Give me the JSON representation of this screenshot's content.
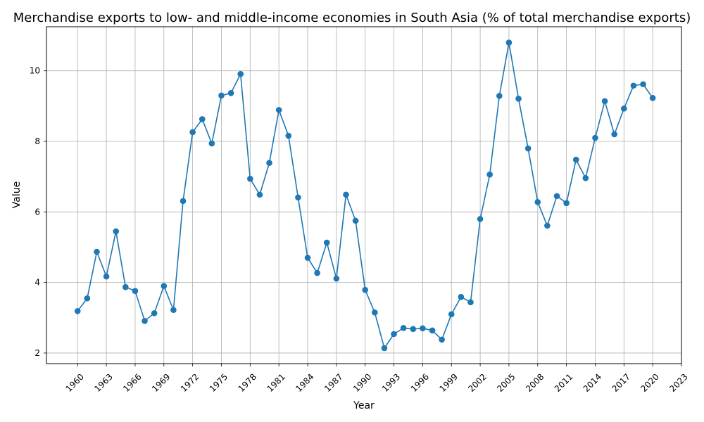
{
  "chart_data": {
    "type": "line",
    "title": "Merchandise exports to low- and middle-income economies in South Asia (% of total merchandise exports)",
    "xlabel": "Year",
    "ylabel": "Value",
    "xlim": [
      1956.75,
      2023
    ],
    "ylim": [
      1.7,
      11.25
    ],
    "x_ticks": [
      1960,
      1963,
      1966,
      1969,
      1972,
      1975,
      1978,
      1981,
      1984,
      1987,
      1990,
      1993,
      1996,
      1999,
      2002,
      2005,
      2008,
      2011,
      2014,
      2017,
      2020,
      2023
    ],
    "y_ticks": [
      2,
      4,
      6,
      8,
      10
    ],
    "grid": true,
    "marker": "circle",
    "series": [
      {
        "color": "#1f77b4",
        "x": [
          1960,
          1961,
          1962,
          1963,
          1964,
          1965,
          1966,
          1967,
          1968,
          1969,
          1970,
          1971,
          1972,
          1973,
          1974,
          1975,
          1976,
          1977,
          1978,
          1979,
          1980,
          1981,
          1982,
          1983,
          1984,
          1985,
          1986,
          1987,
          1988,
          1989,
          1990,
          1991,
          1992,
          1993,
          1994,
          1995,
          1996,
          1997,
          1998,
          1999,
          2000,
          2001,
          2002,
          2003,
          2004,
          2005,
          2006,
          2007,
          2008,
          2009,
          2010,
          2011,
          2012,
          2013,
          2014,
          2015,
          2016,
          2017,
          2018,
          2019,
          2020
        ],
        "values": [
          3.19,
          3.55,
          4.87,
          4.17,
          5.45,
          3.87,
          3.76,
          2.91,
          3.13,
          3.9,
          3.22,
          6.31,
          8.26,
          8.63,
          7.94,
          9.3,
          9.37,
          9.91,
          6.94,
          6.49,
          7.39,
          8.89,
          8.16,
          6.41,
          4.7,
          4.27,
          5.13,
          4.11,
          6.49,
          5.75,
          3.79,
          3.15,
          2.14,
          2.54,
          2.71,
          2.68,
          2.7,
          2.64,
          2.38,
          3.1,
          3.59,
          3.44,
          5.8,
          7.06,
          9.29,
          10.8,
          9.21,
          7.8,
          6.28,
          5.61,
          6.45,
          6.25,
          7.48,
          6.96,
          8.1,
          9.14,
          8.2,
          8.93,
          9.58,
          9.62,
          9.23
        ]
      }
    ]
  }
}
